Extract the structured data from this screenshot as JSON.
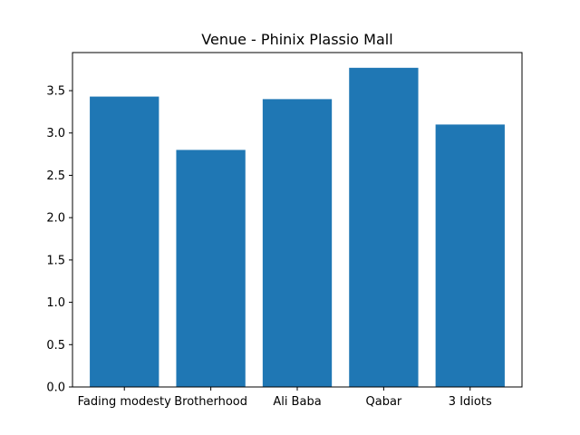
{
  "chart_data": {
    "type": "bar",
    "title": "Venue - Phinix Plassio Mall",
    "xlabel": "",
    "ylabel": "",
    "categories": [
      "Fading modesty",
      "Brotherhood",
      "Ali Baba",
      "Qabar",
      "3 Idiots"
    ],
    "values": [
      3.43,
      2.8,
      3.4,
      3.77,
      3.1
    ],
    "ylim": [
      0,
      3.95
    ],
    "yticks": [
      0.0,
      0.5,
      1.0,
      1.5,
      2.0,
      2.5,
      3.0,
      3.5
    ],
    "ytick_labels": [
      "0.0",
      "0.5",
      "1.0",
      "1.5",
      "2.0",
      "2.5",
      "3.0",
      "3.5"
    ],
    "bar_color": "#1f77b4",
    "grid": false,
    "legend": "none"
  }
}
